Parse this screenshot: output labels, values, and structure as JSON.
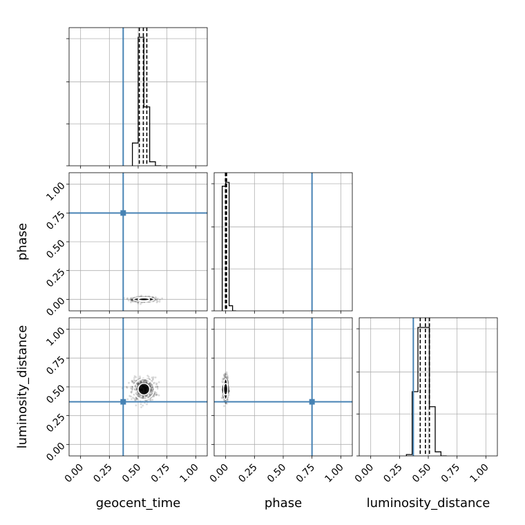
{
  "chart_data": {
    "type": "corner",
    "parameters": [
      "geocent_time",
      "phase",
      "luminosity_distance"
    ],
    "axis_range": [
      -0.1,
      1.1
    ],
    "ticks": [
      0.0,
      0.25,
      0.5,
      0.75,
      1.0
    ],
    "tick_labels": [
      "0.00",
      "0.25",
      "0.50",
      "0.75",
      "1.00"
    ],
    "grid": true,
    "colors": {
      "truth": "#4682b4",
      "samples": "#000000",
      "contour": "#ffffff"
    },
    "truths": {
      "geocent_time": 0.37,
      "phase": 0.75,
      "luminosity_distance": 0.37
    },
    "posteriors": {
      "geocent_time": {
        "mean": 0.55,
        "std": 0.05
      },
      "phase": {
        "mean": 0.0,
        "std": 0.01
      },
      "luminosity_distance": {
        "mean": 0.48,
        "std": 0.05
      }
    },
    "quantiles": {
      "geocent_time": [
        0.51,
        0.545,
        0.575
      ],
      "phase": [
        -0.002,
        0.002,
        0.008
      ],
      "luminosity_distance": [
        0.43,
        0.475,
        0.51
      ]
    },
    "histograms": {
      "geocent_time": {
        "edges": [
          0.45,
          0.5,
          0.55,
          0.6,
          0.65,
          0.7
        ],
        "counts": [
          0.17,
          0.96,
          0.44,
          0.03,
          0.0
        ]
      },
      "phase": {
        "edges": [
          -0.03,
          0.0,
          0.03,
          0.06,
          0.09
        ],
        "counts": [
          0.97,
          1.0,
          0.04,
          0.0
        ]
      },
      "luminosity_distance": {
        "edges": [
          0.31,
          0.36,
          0.41,
          0.46,
          0.51,
          0.56,
          0.61,
          0.66
        ],
        "counts": [
          0.01,
          0.47,
          0.94,
          0.94,
          0.36,
          0.03,
          0.0
        ]
      }
    }
  }
}
